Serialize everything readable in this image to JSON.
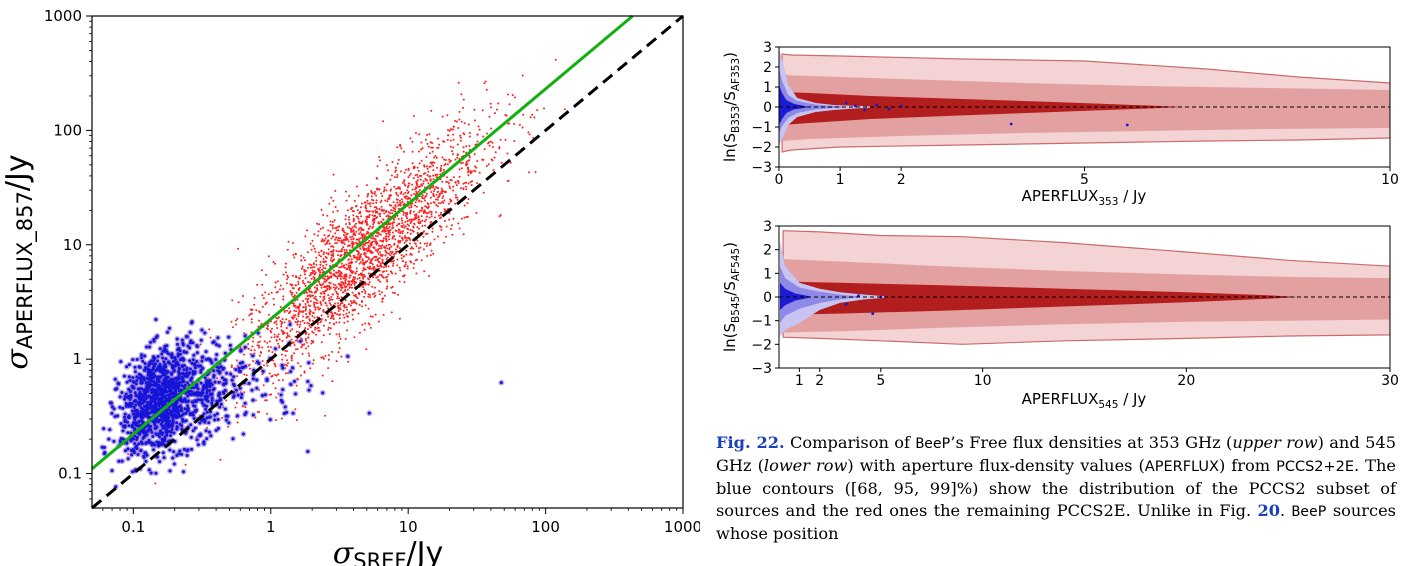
{
  "colors": {
    "red_points": "#ff2020",
    "blue_points": "#1515d8",
    "purple_halo": "#8a70d8",
    "green_fit": "#11b011",
    "identity_line": "#000000",
    "red_contour_99": "#f3d3d3",
    "red_contour_95": "#e3a0a0",
    "red_contour_68": "#b21d1d",
    "red_contour_edge": "#cc6b6b",
    "blue_contour_99": "#c7c4f2",
    "blue_contour_95": "#8e88e6",
    "blue_contour_68": "#1b1bd2"
  },
  "caption": {
    "fig_label": "Fig. 22.",
    "seg1": " Comparison of ",
    "beep1": "BeeP",
    "seg2": "’s Free flux densities at 353 GHz (",
    "upper": "upper row",
    "seg3": ") and 545 GHz (",
    "lower": "lower row",
    "seg4": ") with aperture flux-density values (",
    "aperflux": "APERFLUX",
    "seg5": ") from ",
    "pccs": "PCCS2+2E",
    "seg6": ". The blue contours ([68, 95, 99]%) show the distribution of the PCCS2 subset of sources and the red ones the remaining PCCS2E. Unlike in Fig. ",
    "figref": "20",
    "seg7": ". ",
    "beep2": "BeeP",
    "seg8": " sources whose position"
  },
  "chart_data": [
    {
      "type": "scatter",
      "xscale": "log",
      "yscale": "log",
      "xlim": [
        0.05,
        1000
      ],
      "ylim": [
        0.05,
        1000
      ],
      "xticks": [
        "0.1",
        "1",
        "10",
        "100",
        "1000"
      ],
      "yticks": [
        "0.1",
        "1",
        "10",
        "100",
        "1000"
      ],
      "xlabel": {
        "sym": "σ",
        "sub": "SREF",
        "unit": "/Jy"
      },
      "ylabel": {
        "sym": "σ",
        "sub": "APERFLUX_857",
        "unit": "/Jy"
      },
      "grid": false,
      "series": [
        {
          "color": "red",
          "center_x": 4.5,
          "center_y": 8.0,
          "log_spread_x": 0.45,
          "log_spread_y": 0.45,
          "count": 2600
        },
        {
          "color": "blue",
          "center_x": 0.17,
          "center_y": 0.45,
          "log_spread_x": 0.16,
          "log_spread_y": 0.22,
          "count": 1400
        }
      ],
      "lines": [
        {
          "style": "solid",
          "color": "green",
          "x": [
            0.05,
            430
          ],
          "y": [
            0.11,
            1000
          ]
        },
        {
          "style": "dashed",
          "color": "black",
          "x": [
            0.05,
            1000
          ],
          "y": [
            0.05,
            1000
          ]
        }
      ]
    },
    {
      "type": "area",
      "xlim": [
        0,
        10
      ],
      "ylim": [
        -3,
        3
      ],
      "xticks": [
        0,
        1,
        2,
        5,
        10
      ],
      "yticks": [
        3,
        2,
        1,
        0,
        -1,
        -2,
        -3
      ],
      "xlabel": {
        "main": "APERFLUX",
        "sub": "353",
        "unit": " / Jy"
      },
      "ylabel": {
        "pre": "ln(S",
        "sub1": "B353",
        "mid": "/S",
        "sub2": "AF353",
        "post": ")"
      },
      "reference_line_y": 0,
      "red_contours": {
        "c99": {
          "x": [
            0.05,
            0.2,
            1,
            3,
            5,
            7,
            8.5,
            10
          ],
          "upper": [
            2.65,
            2.6,
            2.55,
            2.4,
            2.3,
            1.9,
            1.5,
            1.2
          ],
          "lower": [
            -2.25,
            -2.15,
            -2.0,
            -1.9,
            -1.8,
            -1.7,
            -1.65,
            -1.55
          ]
        },
        "c95": {
          "x": [
            0.05,
            0.5,
            2,
            4,
            6,
            8,
            10
          ],
          "upper": [
            1.6,
            1.55,
            1.4,
            1.2,
            1.05,
            0.95,
            0.85
          ],
          "lower": [
            -1.7,
            -1.6,
            -1.45,
            -1.3,
            -1.2,
            -1.1,
            -1.05
          ]
        },
        "c68": {
          "x": [
            0.05,
            0.5,
            1.5,
            3,
            4.5,
            6,
            6.6
          ],
          "upper": [
            0.75,
            0.7,
            0.55,
            0.4,
            0.25,
            0.08,
            0.0
          ],
          "lower": [
            -0.9,
            -0.8,
            -0.6,
            -0.42,
            -0.25,
            -0.08,
            0.0
          ]
        }
      },
      "blue_contours": {
        "c99": {
          "x": [
            0,
            0.05,
            0.15,
            0.3,
            0.6,
            0.9,
            1.2,
            1.5
          ],
          "upper": [
            2.9,
            2.4,
            1.1,
            0.45,
            0.2,
            0.1,
            0.06,
            0.03
          ],
          "lower": [
            -1.9,
            -1.6,
            -0.9,
            -0.5,
            -0.25,
            -0.15,
            -0.08,
            -0.03
          ]
        },
        "c95": {
          "x": [
            0,
            0.05,
            0.15,
            0.3,
            0.6,
            0.9,
            1.1
          ],
          "upper": [
            1.9,
            1.3,
            0.6,
            0.3,
            0.12,
            0.05,
            0.02
          ],
          "lower": [
            -1.3,
            -0.95,
            -0.55,
            -0.3,
            -0.12,
            -0.05,
            -0.02
          ]
        },
        "c68": {
          "x": [
            0,
            0.05,
            0.12,
            0.25,
            0.45
          ],
          "upper": [
            1.1,
            0.7,
            0.35,
            0.15,
            0.03
          ],
          "lower": [
            -0.9,
            -0.6,
            -0.3,
            -0.12,
            -0.03
          ]
        }
      },
      "blue_outliers": {
        "x": [
          1.25,
          1.4,
          1.6,
          1.8,
          2.0,
          3.8,
          5.7,
          1.1
        ],
        "y": [
          0.05,
          -0.15,
          0.1,
          -0.1,
          0.05,
          -0.85,
          -0.9,
          0.2
        ]
      }
    },
    {
      "type": "area",
      "xlim": [
        0,
        30
      ],
      "ylim": [
        -3,
        3
      ],
      "xticks": [
        1,
        2,
        5,
        10,
        20,
        30
      ],
      "yticks": [
        3,
        2,
        1,
        0,
        -1,
        -2,
        -3
      ],
      "xlabel": {
        "main": "APERFLUX",
        "sub": "545",
        "unit": " / Jy"
      },
      "ylabel": {
        "pre": "ln(S",
        "sub1": "B545",
        "mid": "/S",
        "sub2": "AF545",
        "post": ")"
      },
      "reference_line_y": 0,
      "red_contours": {
        "c99": {
          "x": [
            0.2,
            2,
            5,
            9,
            14,
            20,
            25,
            30
          ],
          "upper": [
            2.8,
            2.75,
            2.6,
            2.55,
            2.3,
            1.9,
            1.55,
            1.3
          ],
          "lower": [
            -1.7,
            -1.75,
            -1.85,
            -2.0,
            -1.85,
            -1.75,
            -1.65,
            -1.6
          ]
        },
        "c95": {
          "x": [
            0.2,
            3,
            8,
            14,
            20,
            25,
            30
          ],
          "upper": [
            1.6,
            1.5,
            1.3,
            1.1,
            0.95,
            0.85,
            0.8
          ],
          "lower": [
            -1.5,
            -1.45,
            -1.3,
            -1.15,
            -1.05,
            -1.0,
            -0.95
          ]
        },
        "c68": {
          "x": [
            0.2,
            3,
            8,
            14,
            20,
            24,
            25.5
          ],
          "upper": [
            0.65,
            0.6,
            0.5,
            0.35,
            0.2,
            0.07,
            0.0
          ],
          "lower": [
            -0.75,
            -0.7,
            -0.58,
            -0.4,
            -0.22,
            -0.07,
            0.0
          ]
        }
      },
      "blue_contours": {
        "c99": {
          "x": [
            0.05,
            0.3,
            1,
            2,
            3,
            4.2,
            5.2
          ],
          "upper": [
            2.4,
            1.3,
            0.6,
            0.35,
            0.2,
            0.1,
            0.03
          ],
          "lower": [
            -1.65,
            -1.4,
            -1.1,
            -0.55,
            -0.25,
            -0.1,
            -0.03
          ]
        },
        "c95": {
          "x": [
            0.05,
            0.3,
            1,
            2,
            3,
            3.8
          ],
          "upper": [
            1.3,
            0.8,
            0.4,
            0.22,
            0.1,
            0.03
          ],
          "lower": [
            -1.1,
            -0.8,
            -0.5,
            -0.25,
            -0.1,
            -0.03
          ]
        },
        "c68": {
          "x": [
            0.05,
            0.3,
            0.8,
            1.5
          ],
          "upper": [
            0.6,
            0.35,
            0.15,
            0.03
          ],
          "lower": [
            -0.55,
            -0.35,
            -0.15,
            -0.03
          ]
        }
      },
      "blue_outliers": {
        "x": [
          4.6,
          3.3,
          5.0,
          3.9
        ],
        "y": [
          -0.7,
          -0.3,
          0.0,
          0.05
        ]
      }
    }
  ]
}
